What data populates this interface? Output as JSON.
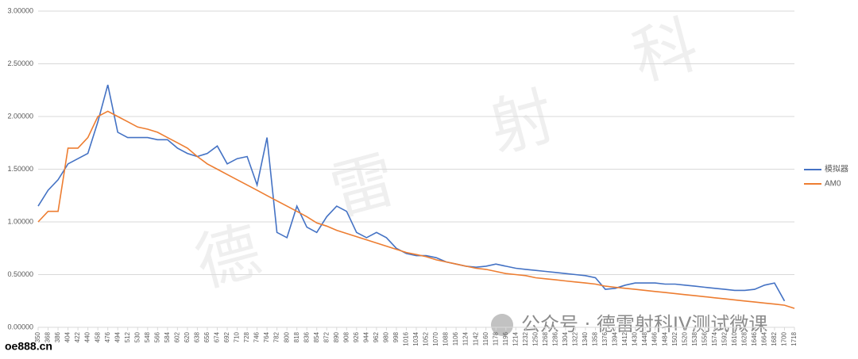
{
  "chart_data": {
    "type": "line",
    "x": [
      350,
      368,
      386,
      404,
      422,
      440,
      458,
      476,
      494,
      512,
      530,
      548,
      566,
      584,
      602,
      620,
      638,
      656,
      674,
      692,
      710,
      728,
      746,
      764,
      782,
      800,
      818,
      836,
      854,
      872,
      890,
      908,
      926,
      944,
      962,
      980,
      998,
      1016,
      1034,
      1052,
      1070,
      1088,
      1106,
      1124,
      1142,
      1160,
      1178,
      1196,
      1214,
      1232,
      1250,
      1268,
      1286,
      1304,
      1322,
      1340,
      1358,
      1376,
      1394,
      1412,
      1430,
      1448,
      1466,
      1484,
      1502,
      1520,
      1538,
      1556,
      1574,
      1592,
      1610,
      1628,
      1646,
      1664,
      1682,
      1700,
      1718
    ],
    "series": [
      {
        "name": "模拟器",
        "color": "#4472c4",
        "values": [
          1.15,
          1.3,
          1.4,
          1.55,
          1.6,
          1.65,
          1.95,
          2.3,
          1.85,
          1.8,
          1.8,
          1.8,
          1.78,
          1.78,
          1.7,
          1.65,
          1.62,
          1.65,
          1.72,
          1.55,
          1.6,
          1.62,
          1.35,
          1.8,
          0.9,
          0.85,
          1.15,
          0.95,
          0.9,
          1.05,
          1.15,
          1.1,
          0.9,
          0.85,
          0.9,
          0.85,
          0.75,
          0.7,
          0.68,
          0.68,
          0.66,
          0.62,
          0.6,
          0.58,
          0.57,
          0.58,
          0.6,
          0.58,
          0.56,
          0.55,
          0.54,
          0.53,
          0.52,
          0.51,
          0.5,
          0.49,
          0.47,
          0.36,
          0.37,
          0.4,
          0.42,
          0.42,
          0.42,
          0.41,
          0.41,
          0.4,
          0.39,
          0.38,
          0.37,
          0.36,
          0.35,
          0.35,
          0.36,
          0.4,
          0.42,
          0.25,
          null
        ]
      },
      {
        "name": "AM0",
        "color": "#ed7d31",
        "values": [
          1.0,
          1.1,
          1.1,
          1.7,
          1.7,
          1.8,
          2.0,
          2.05,
          2.0,
          1.95,
          1.9,
          1.88,
          1.85,
          1.8,
          1.75,
          1.7,
          1.62,
          1.55,
          1.5,
          1.45,
          1.4,
          1.35,
          1.3,
          1.25,
          1.2,
          1.15,
          1.1,
          1.05,
          0.99,
          0.96,
          0.92,
          0.89,
          0.86,
          0.83,
          0.8,
          0.77,
          0.74,
          0.71,
          0.69,
          0.67,
          0.64,
          0.62,
          0.6,
          0.58,
          0.56,
          0.55,
          0.53,
          0.51,
          0.5,
          0.49,
          0.47,
          0.46,
          0.45,
          0.44,
          0.43,
          0.42,
          0.41,
          0.39,
          0.38,
          0.37,
          0.36,
          0.35,
          0.34,
          0.33,
          0.32,
          0.31,
          0.3,
          0.29,
          0.28,
          0.27,
          0.26,
          0.25,
          0.24,
          0.23,
          0.22,
          0.21,
          0.18
        ]
      }
    ],
    "xlim": [
      350,
      1718
    ],
    "xticks": [
      350,
      368,
      386,
      404,
      422,
      440,
      458,
      476,
      494,
      512,
      530,
      548,
      566,
      584,
      602,
      620,
      638,
      656,
      674,
      692,
      710,
      728,
      746,
      764,
      782,
      800,
      818,
      836,
      854,
      872,
      890,
      908,
      926,
      944,
      962,
      980,
      998,
      1016,
      1034,
      1052,
      1070,
      1088,
      1106,
      1124,
      1142,
      1160,
      1178,
      1196,
      1214,
      1232,
      1250,
      1268,
      1286,
      1304,
      1322,
      1340,
      1358,
      1376,
      1394,
      1412,
      1430,
      1448,
      1466,
      1484,
      1502,
      1520,
      1538,
      1556,
      1574,
      1592,
      1610,
      1628,
      1646,
      1664,
      1682,
      1700,
      1718
    ],
    "ylim": [
      0,
      3
    ],
    "yticks": [
      {
        "value": 0,
        "label": "0.00000"
      },
      {
        "value": 0.5,
        "label": "0.50000"
      },
      {
        "value": 1,
        "label": "1.00000"
      },
      {
        "value": 1.5,
        "label": "1.50000"
      },
      {
        "value": 2,
        "label": "2.00000"
      },
      {
        "value": 2.5,
        "label": "2.50000"
      },
      {
        "value": 3,
        "label": "3.00000"
      }
    ],
    "grid": true,
    "legend": "right"
  },
  "watermark": {
    "chars": [
      "德",
      "雷",
      "射",
      "科"
    ],
    "caption": "公众号 · 德雷射科IV测试微课",
    "site": "oe888.cn"
  }
}
